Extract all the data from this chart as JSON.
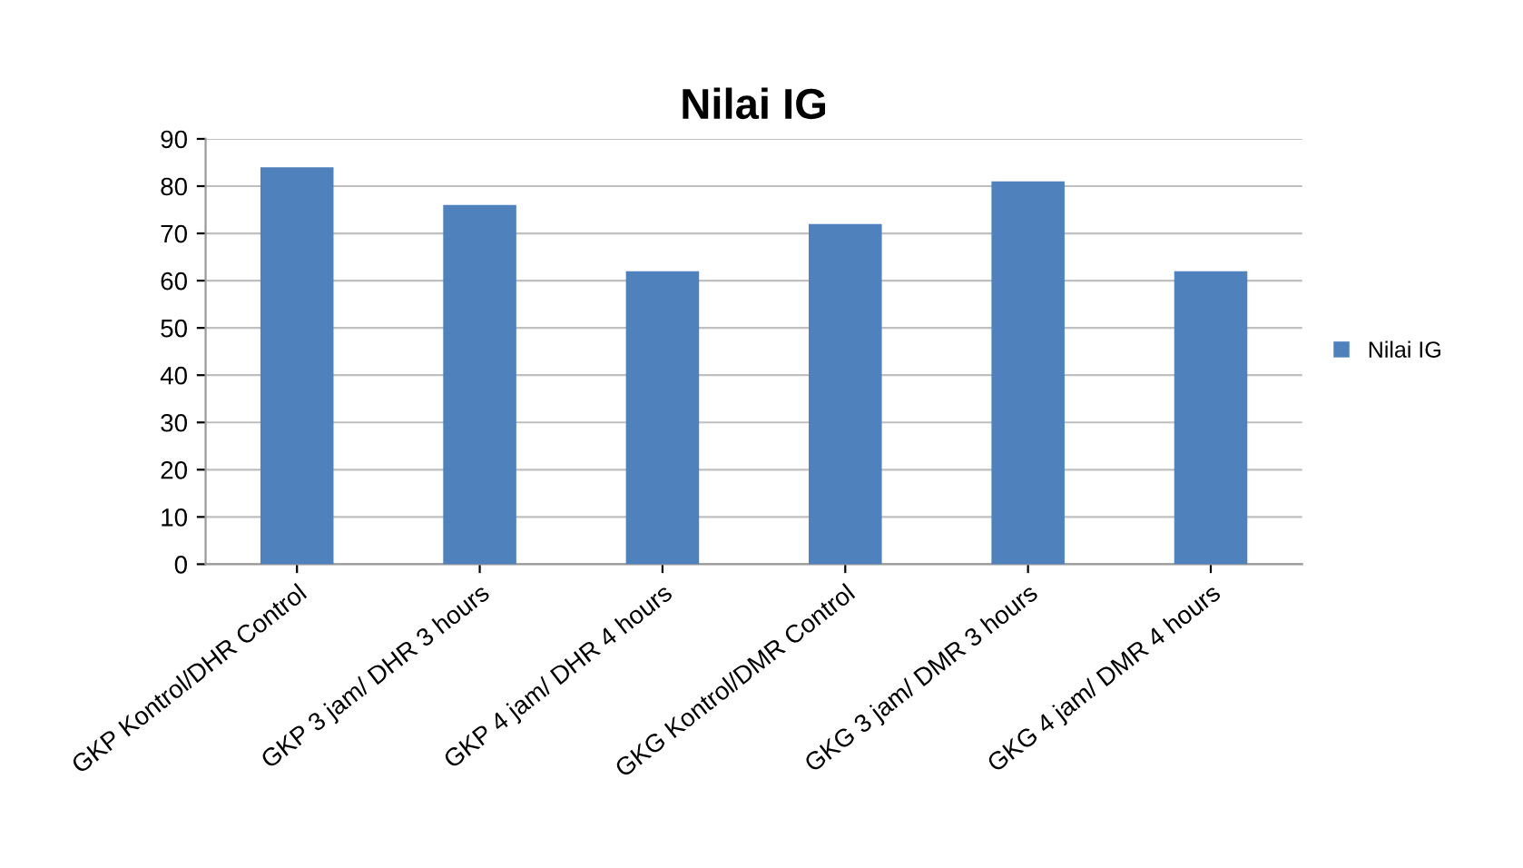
{
  "chart_data": {
    "type": "bar",
    "title": "Nilai IG",
    "categories": [
      "GKP Kontrol/DHR Control",
      "GKP 3 jam/ DHR 3 hours",
      "GKP 4 jam/ DHR 4 hours",
      "GKG Kontrol/DMR Control",
      "GKG 3 jam/ DMR 3 hours",
      "GKG 4 jam/ DMR 4 hours"
    ],
    "series": [
      {
        "name": "Nilai IG",
        "color": "#4f81bd",
        "values": [
          84,
          76,
          62,
          72,
          81,
          62
        ]
      }
    ],
    "ylim": [
      0,
      90
    ],
    "yticks": [
      0,
      10,
      20,
      30,
      40,
      50,
      60,
      70,
      80,
      90
    ],
    "grid": "y",
    "legend": "right"
  }
}
